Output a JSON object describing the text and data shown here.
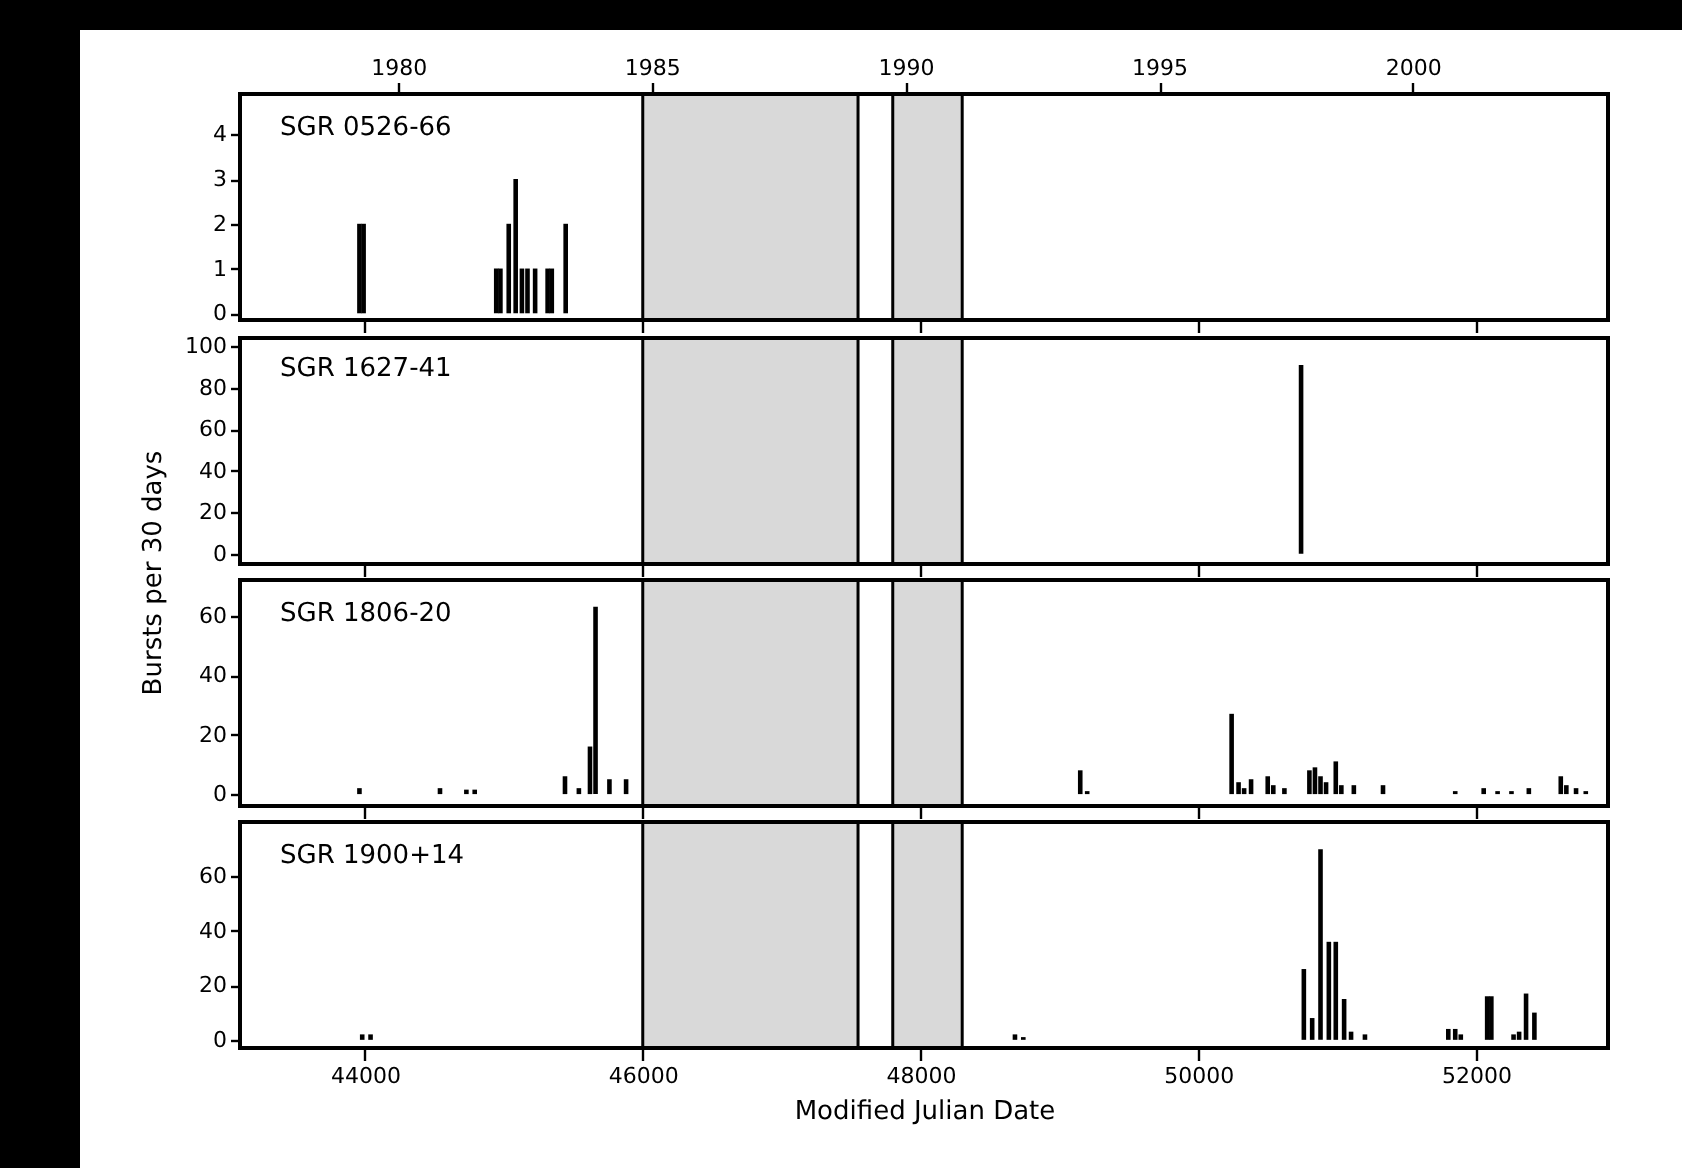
{
  "chart_data": [
    {
      "type": "bar",
      "title": "SGR 0526-66",
      "color": "#000000",
      "xlim": [
        43100,
        52950
      ],
      "xticks": [
        44000,
        46000,
        48000,
        50000,
        52000
      ],
      "ylim": [
        -0.15,
        4.9
      ],
      "yticks": [
        0,
        1,
        2,
        3,
        4
      ],
      "tick_labels": "y",
      "grid": false,
      "x2lim": [
        1976.88,
        2003.85
      ],
      "x2ticks": [
        1980,
        1985,
        1990,
        1995,
        2000
      ],
      "x": [
        43960,
        43990,
        44945,
        44975,
        45035,
        45085,
        45130,
        45170,
        45225,
        45315,
        45345,
        45445
      ],
      "values": [
        2,
        2,
        1,
        1,
        2,
        3,
        1,
        1,
        1,
        1,
        1,
        2
      ],
      "bands": [
        {
          "axis": "x",
          "from": 46000,
          "to": 47550,
          "color": "#000000"
        },
        {
          "axis": "x",
          "from": 47800,
          "to": 48300,
          "color": "#000000"
        }
      ]
    },
    {
      "type": "bar",
      "title": "SGR 1627-41",
      "ylabel": "Bursts per 30 days",
      "color": "#000000",
      "xlim": [
        43100,
        52950
      ],
      "xticks": [
        44000,
        46000,
        48000,
        50000,
        52000
      ],
      "ylim": [
        -5,
        104
      ],
      "yticks": [
        0,
        20,
        40,
        60,
        80,
        100
      ],
      "tick_labels": "y",
      "grid": false,
      "x": [
        50740
      ],
      "values": [
        91
      ],
      "bands": [
        {
          "axis": "x",
          "from": 46000,
          "to": 47550,
          "color": "#000000"
        },
        {
          "axis": "x",
          "from": 47800,
          "to": 48300,
          "color": "#000000"
        }
      ]
    },
    {
      "type": "bar",
      "title": "SGR 1806-20",
      "color": "#000000",
      "xlim": [
        43100,
        52950
      ],
      "xticks": [
        44000,
        46000,
        48000,
        50000,
        52000
      ],
      "ylim": [
        -4,
        72
      ],
      "yticks": [
        0,
        20,
        40,
        60
      ],
      "tick_labels": "y",
      "grid": false,
      "x": [
        43960,
        44540,
        44730,
        44790,
        45440,
        45540,
        45620,
        45660,
        45760,
        45880,
        49150,
        49200,
        50240,
        50290,
        50330,
        50380,
        50500,
        50540,
        50620,
        50800,
        50840,
        50880,
        50920,
        50990,
        51030,
        51120,
        51330,
        51850,
        52055,
        52155,
        52255,
        52380,
        52610,
        52650,
        52720,
        52790
      ],
      "values": [
        2,
        2,
        1.5,
        1.5,
        6,
        2,
        16,
        63,
        5,
        5,
        8,
        1,
        27,
        4,
        2,
        5,
        6,
        3,
        2,
        8,
        9,
        6,
        4,
        11,
        3,
        3,
        3,
        1,
        2,
        1,
        1,
        2,
        6,
        3,
        2,
        1
      ],
      "bands": [
        {
          "axis": "x",
          "from": 46000,
          "to": 47550,
          "color": "#000000"
        },
        {
          "axis": "x",
          "from": 47800,
          "to": 48300,
          "color": "#000000"
        }
      ]
    },
    {
      "type": "bar",
      "title": "SGR 1900+14",
      "xlabel": "Modified Julian Date",
      "color": "#000000",
      "xlim": [
        43100,
        52950
      ],
      "xticks": [
        44000,
        46000,
        48000,
        50000,
        52000
      ],
      "ylim": [
        -3,
        80
      ],
      "yticks": [
        0,
        20,
        40,
        60
      ],
      "grid": false,
      "x": [
        43980,
        44040,
        48680,
        48740,
        50760,
        50820,
        50880,
        50940,
        50990,
        51050,
        51100,
        51200,
        51800,
        51850,
        51890,
        52080,
        52110,
        52270,
        52310,
        52360,
        52420
      ],
      "values": [
        2,
        2,
        2,
        1,
        26,
        8,
        70,
        36,
        36,
        15,
        3,
        2,
        4,
        4,
        2,
        16,
        16,
        2,
        3,
        17,
        10
      ],
      "bands": [
        {
          "axis": "x",
          "from": 46000,
          "to": 47550,
          "color": "#000000"
        },
        {
          "axis": "x",
          "from": 47800,
          "to": 48300,
          "color": "#000000"
        }
      ]
    }
  ]
}
